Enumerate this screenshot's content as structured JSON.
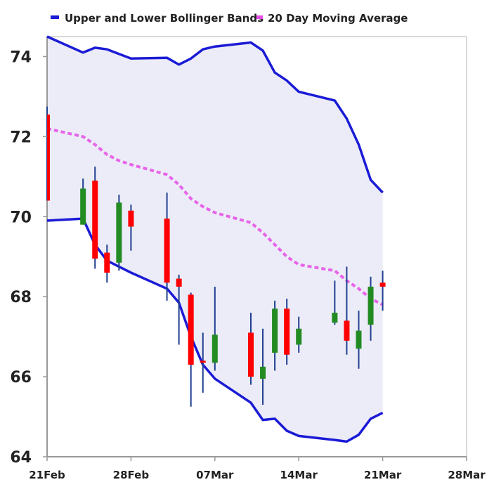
{
  "chart_data": {
    "type": "candlestick",
    "legend": {
      "placement": "top-left",
      "entries": [
        {
          "name": "Upper and Lower Bollinger Bands",
          "color": "#1b1bd6"
        },
        {
          "name": "20 Day Moving Average",
          "color": "#e64ce6"
        }
      ]
    },
    "colors": {
      "band_line": "#1b1bd6",
      "band_fill": "#ececf8",
      "moving_average": "#e64ce6",
      "up_candle": "#228b22",
      "down_candle": "#ff0000",
      "wick": "#1f3f8f",
      "axis": "#999999"
    },
    "x_axis": {
      "type": "date",
      "range": [
        "2022-02-21",
        "2022-03-28"
      ],
      "tick_dates": [
        "2022-02-21",
        "2022-02-28",
        "2022-03-07",
        "2022-03-14",
        "2022-03-21",
        "2022-03-28"
      ],
      "tick_labels": [
        "21Feb",
        "28Feb",
        "07Mar",
        "14Mar",
        "21Mar",
        "28Mar"
      ]
    },
    "y_axis": {
      "range": [
        64,
        74.5
      ],
      "ticks": [
        64,
        66,
        68,
        70,
        72,
        74
      ]
    },
    "grid": false,
    "upper_band": [
      {
        "date": "2022-02-21",
        "value": 74.5
      },
      {
        "date": "2022-02-24",
        "value": 74.1
      },
      {
        "date": "2022-02-25",
        "value": 74.22
      },
      {
        "date": "2022-02-26",
        "value": 74.18
      },
      {
        "date": "2022-02-28",
        "value": 73.95
      },
      {
        "date": "2022-03-03",
        "value": 73.97
      },
      {
        "date": "2022-03-04",
        "value": 73.8
      },
      {
        "date": "2022-03-05",
        "value": 73.95
      },
      {
        "date": "2022-03-06",
        "value": 74.18
      },
      {
        "date": "2022-03-07",
        "value": 74.25
      },
      {
        "date": "2022-03-10",
        "value": 74.35
      },
      {
        "date": "2022-03-11",
        "value": 74.15
      },
      {
        "date": "2022-03-12",
        "value": 73.6
      },
      {
        "date": "2022-03-13",
        "value": 73.4
      },
      {
        "date": "2022-03-14",
        "value": 73.12
      },
      {
        "date": "2022-03-17",
        "value": 72.9
      },
      {
        "date": "2022-03-18",
        "value": 72.45
      },
      {
        "date": "2022-03-19",
        "value": 71.8
      },
      {
        "date": "2022-03-20",
        "value": 70.92
      },
      {
        "date": "2022-03-21",
        "value": 70.6
      }
    ],
    "lower_band": [
      {
        "date": "2022-02-21",
        "value": 69.9
      },
      {
        "date": "2022-02-24",
        "value": 69.95
      },
      {
        "date": "2022-02-25",
        "value": 69.3
      },
      {
        "date": "2022-02-26",
        "value": 68.9
      },
      {
        "date": "2022-02-28",
        "value": 68.6
      },
      {
        "date": "2022-03-03",
        "value": 68.2
      },
      {
        "date": "2022-03-04",
        "value": 67.85
      },
      {
        "date": "2022-03-05",
        "value": 67.0
      },
      {
        "date": "2022-03-06",
        "value": 66.3
      },
      {
        "date": "2022-03-07",
        "value": 65.95
      },
      {
        "date": "2022-03-10",
        "value": 65.35
      },
      {
        "date": "2022-03-11",
        "value": 64.92
      },
      {
        "date": "2022-03-12",
        "value": 64.95
      },
      {
        "date": "2022-03-13",
        "value": 64.65
      },
      {
        "date": "2022-03-14",
        "value": 64.52
      },
      {
        "date": "2022-03-17",
        "value": 64.42
      },
      {
        "date": "2022-03-18",
        "value": 64.38
      },
      {
        "date": "2022-03-19",
        "value": 64.55
      },
      {
        "date": "2022-03-20",
        "value": 64.95
      },
      {
        "date": "2022-03-21",
        "value": 65.1
      }
    ],
    "moving_average": [
      {
        "date": "2022-02-21",
        "value": 72.2
      },
      {
        "date": "2022-02-24",
        "value": 72.0
      },
      {
        "date": "2022-02-25",
        "value": 71.8
      },
      {
        "date": "2022-02-26",
        "value": 71.55
      },
      {
        "date": "2022-02-27",
        "value": 71.4
      },
      {
        "date": "2022-02-28",
        "value": 71.3
      },
      {
        "date": "2022-03-03",
        "value": 71.05
      },
      {
        "date": "2022-03-04",
        "value": 70.8
      },
      {
        "date": "2022-03-05",
        "value": 70.45
      },
      {
        "date": "2022-03-06",
        "value": 70.25
      },
      {
        "date": "2022-03-07",
        "value": 70.1
      },
      {
        "date": "2022-03-10",
        "value": 69.85
      },
      {
        "date": "2022-03-11",
        "value": 69.6
      },
      {
        "date": "2022-03-12",
        "value": 69.3
      },
      {
        "date": "2022-03-13",
        "value": 69.0
      },
      {
        "date": "2022-03-14",
        "value": 68.8
      },
      {
        "date": "2022-03-17",
        "value": 68.65
      },
      {
        "date": "2022-03-18",
        "value": 68.4
      },
      {
        "date": "2022-03-19",
        "value": 68.2
      },
      {
        "date": "2022-03-20",
        "value": 67.95
      },
      {
        "date": "2022-03-21",
        "value": 67.8
      }
    ],
    "candles": [
      {
        "date": "2022-02-21",
        "open": 72.55,
        "high": 72.75,
        "low": 70.4,
        "close": 70.4
      },
      {
        "date": "2022-02-24",
        "open": 69.8,
        "high": 70.95,
        "low": 69.8,
        "close": 70.7
      },
      {
        "date": "2022-02-25",
        "open": 70.9,
        "high": 71.25,
        "low": 68.7,
        "close": 68.95
      },
      {
        "date": "2022-02-26",
        "open": 69.1,
        "high": 69.3,
        "low": 68.35,
        "close": 68.6
      },
      {
        "date": "2022-02-27",
        "open": 68.85,
        "high": 70.55,
        "low": 68.65,
        "close": 70.35
      },
      {
        "date": "2022-02-28",
        "open": 70.15,
        "high": 70.3,
        "low": 69.15,
        "close": 69.75
      },
      {
        "date": "2022-03-03",
        "open": 69.95,
        "high": 70.6,
        "low": 67.9,
        "close": 68.35
      },
      {
        "date": "2022-03-04",
        "open": 68.45,
        "high": 68.55,
        "low": 66.8,
        "close": 68.25
      },
      {
        "date": "2022-03-05",
        "open": 68.05,
        "high": 68.1,
        "low": 65.25,
        "close": 66.3
      },
      {
        "date": "2022-03-06",
        "open": 66.4,
        "high": 67.1,
        "low": 65.6,
        "close": 66.35
      },
      {
        "date": "2022-03-07",
        "open": 66.35,
        "high": 68.25,
        "low": 66.15,
        "close": 67.05
      },
      {
        "date": "2022-03-10",
        "open": 67.1,
        "high": 67.6,
        "low": 65.8,
        "close": 66.0
      },
      {
        "date": "2022-03-11",
        "open": 65.95,
        "high": 67.2,
        "low": 65.3,
        "close": 66.25
      },
      {
        "date": "2022-03-12",
        "open": 66.6,
        "high": 67.9,
        "low": 66.15,
        "close": 67.7
      },
      {
        "date": "2022-03-13",
        "open": 67.7,
        "high": 67.95,
        "low": 66.3,
        "close": 66.55
      },
      {
        "date": "2022-03-14",
        "open": 66.8,
        "high": 67.5,
        "low": 66.6,
        "close": 67.2
      },
      {
        "date": "2022-03-17",
        "open": 67.35,
        "high": 68.4,
        "low": 67.3,
        "close": 67.6
      },
      {
        "date": "2022-03-18",
        "open": 67.4,
        "high": 68.75,
        "low": 66.55,
        "close": 66.9
      },
      {
        "date": "2022-03-19",
        "open": 66.7,
        "high": 67.65,
        "low": 66.2,
        "close": 67.15
      },
      {
        "date": "2022-03-20",
        "open": 67.3,
        "high": 68.5,
        "low": 66.9,
        "close": 68.25
      },
      {
        "date": "2022-03-21",
        "open": 68.35,
        "high": 68.65,
        "low": 67.65,
        "close": 68.25
      }
    ]
  }
}
